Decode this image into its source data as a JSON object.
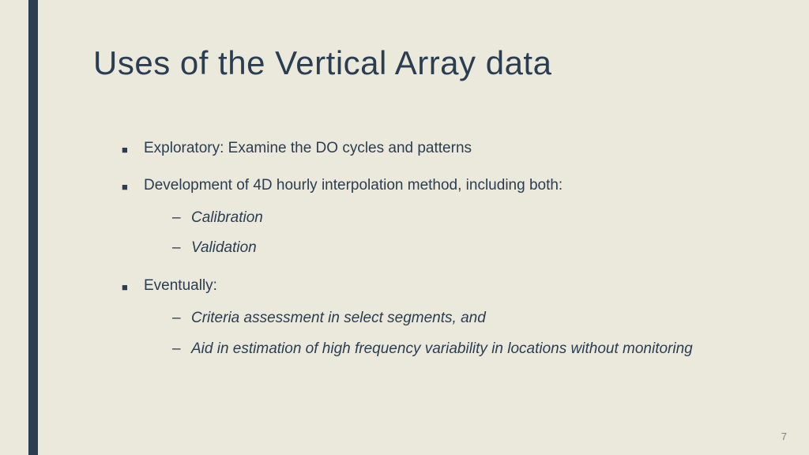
{
  "slide": {
    "title": "Uses of the Vertical Array data",
    "page_number": "7",
    "bullets": [
      {
        "text": "Exploratory: Examine the DO cycles and patterns",
        "subs": []
      },
      {
        "text": "Development of 4D hourly interpolation method, including both:",
        "subs": [
          "Calibration",
          "Validation"
        ]
      },
      {
        "text": "Eventually:",
        "subs": [
          "Criteria assessment in select segments, and",
          "Aid in estimation of high frequency variability in locations without monitoring"
        ]
      }
    ]
  },
  "colors": {
    "background": "#ebe8dc",
    "accent": "#2b3d51",
    "text": "#2b3d51",
    "page_num": "#808080"
  }
}
